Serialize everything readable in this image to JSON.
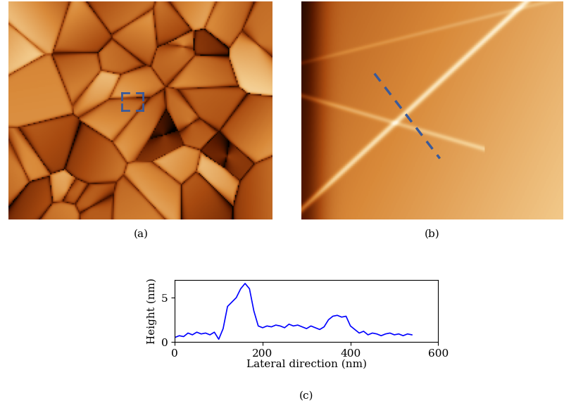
{
  "panel_labels": [
    "(a)",
    "(b)",
    "(c)"
  ],
  "chart_data": {
    "type": "line",
    "x_label": "Lateral direction (nm)",
    "y_label": "Height (nm)",
    "x": [
      0,
      10,
      20,
      30,
      40,
      50,
      60,
      70,
      80,
      90,
      100,
      110,
      120,
      130,
      140,
      150,
      160,
      170,
      180,
      190,
      200,
      210,
      220,
      230,
      240,
      250,
      260,
      270,
      280,
      290,
      300,
      310,
      320,
      330,
      340,
      350,
      360,
      370,
      380,
      390,
      400,
      410,
      420,
      430,
      440,
      450,
      460,
      470,
      480,
      490,
      500,
      510,
      520,
      530,
      540
    ],
    "values": [
      0.5,
      0.7,
      0.6,
      1.0,
      0.8,
      1.1,
      0.9,
      1.0,
      0.8,
      1.1,
      0.3,
      1.5,
      4.0,
      4.5,
      5.0,
      6.0,
      6.6,
      6.0,
      3.5,
      1.8,
      1.6,
      1.8,
      1.7,
      1.9,
      1.8,
      1.6,
      2.0,
      1.8,
      1.9,
      1.7,
      1.5,
      1.8,
      1.6,
      1.4,
      1.7,
      2.5,
      2.9,
      3.0,
      2.8,
      2.9,
      1.8,
      1.4,
      1.0,
      1.2,
      0.8,
      1.0,
      0.9,
      0.7,
      0.9,
      1.0,
      0.8,
      0.9,
      0.7,
      0.9,
      0.8
    ],
    "color": "#0000ff",
    "xlim": [
      0,
      600
    ],
    "xticks": [
      0,
      200,
      400,
      600
    ],
    "ylim": [
      0,
      7
    ],
    "yticks": [
      0,
      5
    ],
    "grid": false
  }
}
